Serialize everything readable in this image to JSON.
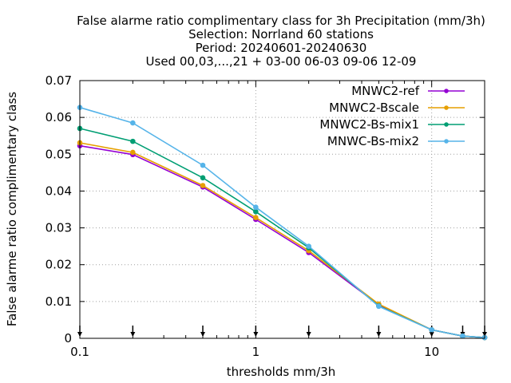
{
  "chart_data": {
    "type": "line",
    "title_lines": [
      "False alarme ratio complimentary class  for 3h Precipitation (mm/3h)",
      "Selection: Norrland     60 stations",
      "Period: 20240601-20240630",
      "Used 00,03,...,21 + 03-00 06-03 09-06 12-09"
    ],
    "xlabel": "thresholds mm/3h",
    "ylabel": "False alarme ratio complimentary class",
    "x_scale": "log",
    "xlim": [
      0.1,
      20
    ],
    "ylim": [
      0,
      0.07
    ],
    "x_ticks": [
      0.1,
      1,
      10
    ],
    "x_tick_labels": [
      "0.1",
      "1",
      "10"
    ],
    "y_ticks": [
      0,
      0.01,
      0.02,
      0.03,
      0.04,
      0.05,
      0.06,
      0.07
    ],
    "y_tick_labels": [
      "0",
      "0.01",
      "0.02",
      "0.03",
      "0.04",
      "0.05",
      "0.06",
      "0.07"
    ],
    "grid": true,
    "legend_position": "top-right",
    "x": [
      0.1,
      0.2,
      0.5,
      1,
      2,
      5,
      10,
      15,
      20
    ],
    "series": [
      {
        "name": "MNWC2-ref",
        "color": "#9400d3",
        "values": [
          0.0523,
          0.0499,
          0.0411,
          0.0323,
          0.0233,
          0.0091,
          0.0023,
          0.0006,
          0.0002
        ]
      },
      {
        "name": "MNWC2-Bscale",
        "color": "#e69f00",
        "values": [
          0.0531,
          0.0505,
          0.0415,
          0.0328,
          0.0238,
          0.0093,
          0.0023,
          0.0006,
          0.0002
        ]
      },
      {
        "name": "MNWC2-Bs-mix1",
        "color": "#009e73",
        "values": [
          0.057,
          0.0535,
          0.0436,
          0.0344,
          0.0246,
          0.0088,
          0.0023,
          0.0006,
          0.0002
        ]
      },
      {
        "name": "MNWC-Bs-mix2",
        "color": "#56b4e9",
        "values": [
          0.0627,
          0.0585,
          0.047,
          0.0356,
          0.025,
          0.0087,
          0.0023,
          0.0006,
          0.0002
        ]
      }
    ],
    "marker_points": [
      0.1,
      0.2,
      0.5,
      1,
      2,
      5,
      10,
      15,
      20
    ]
  }
}
